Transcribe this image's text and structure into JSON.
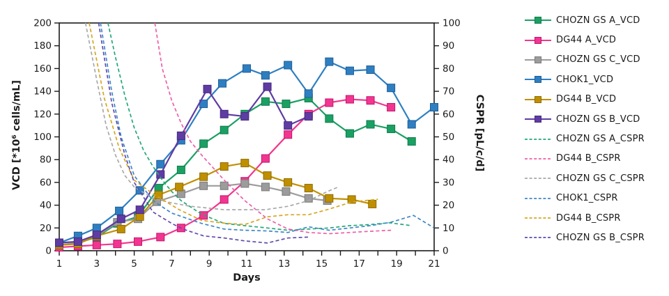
{
  "chart_data": {
    "type": "line",
    "title": "",
    "background": "#ffffff",
    "frame_color": "#1a1a1a",
    "grid": false,
    "legend_position": "right",
    "x_axis": {
      "label": "Days",
      "min": 1,
      "max": 21,
      "minor_tick_step": 1,
      "tick_labels": [
        "1",
        "3",
        "5",
        "7",
        "9",
        "11",
        "13",
        "15",
        "17",
        "19",
        "21"
      ],
      "tick_values": [
        1,
        3,
        5,
        7,
        9,
        11,
        13,
        15,
        17,
        19,
        21
      ]
    },
    "y_left": {
      "label": "VCD [*10⁶ cells/mL]",
      "min": 0,
      "max": 200,
      "step": 20,
      "tick_labels": [
        "0",
        "20",
        "40",
        "60",
        "80",
        "100",
        "120",
        "140",
        "160",
        "180",
        "200"
      ]
    },
    "y_right": {
      "label": "CSPR [pL/c/d]",
      "min": 0,
      "max": 100,
      "step": 10,
      "tick_labels": [
        "0",
        "10",
        "20",
        "30",
        "40",
        "50",
        "60",
        "70",
        "80",
        "90",
        "100"
      ]
    },
    "series": [
      {
        "label": "CHOZN GS A_VCD",
        "color": "#1BA064",
        "border": "#0F7A49",
        "style": "solid",
        "axis": "left",
        "x": [
          1,
          2,
          3,
          4.1,
          5.2,
          6.3,
          7.5,
          8.7,
          9.8,
          10.9,
          12,
          13.1,
          14.3,
          15.4,
          16.5,
          17.6,
          18.7,
          19.8
        ],
        "y": [
          5,
          7,
          12,
          24,
          30,
          55,
          71,
          94,
          106,
          120,
          131,
          129,
          134,
          116,
          103,
          111,
          107,
          96
        ]
      },
      {
        "label": "DG44 A_VCD",
        "color": "#F2368F",
        "border": "#C21371",
        "style": "solid",
        "axis": "left",
        "x": [
          1,
          2,
          3,
          4.1,
          5.2,
          6.4,
          7.5,
          8.7,
          9.8,
          10.9,
          12,
          13.2,
          14.3,
          15.4,
          16.5,
          17.6,
          18.7
        ],
        "y": [
          3,
          4,
          5,
          6,
          8,
          12,
          20,
          31,
          45,
          61,
          81,
          102,
          120,
          130,
          133,
          132,
          126
        ]
      },
      {
        "label": "CHOZN GS C_VCD",
        "color": "#9C9C9C",
        "border": "#7A7A7A",
        "style": "solid",
        "axis": "left",
        "x": [
          1,
          2,
          3,
          4.1,
          5.2,
          6.2,
          7.5,
          8.7,
          9.8,
          10.9,
          12,
          13.1,
          14.3,
          15.3
        ],
        "y": [
          5,
          7,
          13,
          25,
          28,
          43,
          50,
          57,
          57,
          59,
          56,
          52,
          46,
          44
        ]
      },
      {
        "label": "CHOK1_VCD",
        "color": "#2E7FC2",
        "border": "#1E5D96",
        "style": "solid",
        "axis": "left",
        "x": [
          1,
          2,
          3,
          4.2,
          5.3,
          6.4,
          7.5,
          8.7,
          9.7,
          11,
          12,
          13.2,
          14.3,
          15.4,
          16.5,
          17.6,
          18.7,
          19.8,
          21
        ],
        "y": [
          7,
          13,
          20,
          35,
          53,
          76,
          97,
          129,
          147,
          160,
          154,
          163,
          138,
          166,
          158,
          159,
          143,
          111,
          126
        ]
      },
      {
        "label": "DG44 B_VCD",
        "color": "#BF8F00",
        "border": "#8F6B00",
        "style": "solid",
        "axis": "left",
        "x": [
          1,
          2,
          3,
          4.3,
          5.3,
          6.3,
          7.4,
          8.7,
          9.8,
          10.9,
          12.1,
          13.2,
          14.3,
          15.4,
          16.6,
          17.7
        ],
        "y": [
          5,
          6,
          13,
          19,
          30,
          49,
          56,
          65,
          74,
          77,
          66,
          60,
          55,
          46,
          45,
          41
        ]
      },
      {
        "label": "CHOZN GS B_VCD",
        "color": "#5F3CA3",
        "border": "#46297E",
        "style": "solid",
        "axis": "left",
        "x": [
          1,
          2,
          3,
          4.3,
          5.3,
          6.4,
          7.5,
          8.9,
          9.8,
          10.9,
          12.1,
          13.2,
          14.3
        ],
        "y": [
          7,
          8,
          14,
          28,
          36,
          67,
          101,
          142,
          120,
          118,
          144,
          110,
          118
        ]
      },
      {
        "label": "CHOZN GS A_CSPR",
        "color": "#22A876",
        "style": "dashed",
        "axis": "right",
        "x": [
          3.6,
          4,
          4.5,
          5,
          5.5,
          6,
          6.5,
          7,
          7.5,
          8.6,
          9.8,
          10.9,
          12.1,
          13.2,
          14.3,
          15.4,
          16.5,
          17.6,
          18.6,
          19.8
        ],
        "y": [
          100,
          85,
          68,
          54,
          44,
          37,
          31,
          26,
          22,
          16,
          12,
          11,
          10,
          9,
          9.5,
          10,
          11,
          11.5,
          12.3,
          11
        ]
      },
      {
        "label": "DG44 B_CSPR",
        "color": "#EE5FA8",
        "style": "dashed",
        "axis": "right",
        "x": [
          6.1,
          6.5,
          7,
          7.5,
          8,
          8.6,
          9.8,
          10.9,
          12.1,
          13.2,
          14.3,
          15.4,
          16.5,
          17.5,
          18.7
        ],
        "y": [
          100,
          80,
          66,
          56,
          48,
          42,
          31,
          22,
          14,
          9.5,
          8,
          7.5,
          8,
          8.5,
          9
        ]
      },
      {
        "label": "CHOZN GS C_CSPR",
        "color": "#A8A8A8",
        "style": "dashed",
        "axis": "right",
        "x": [
          2.4,
          3,
          3.5,
          4,
          4.5,
          5,
          6,
          7,
          8,
          9.8,
          10.9,
          12,
          13.2,
          14.3,
          15.3,
          15.9
        ],
        "y": [
          100,
          75,
          55,
          42,
          33,
          28,
          23,
          21,
          19.5,
          18,
          18,
          18,
          19.5,
          22,
          26,
          28
        ]
      },
      {
        "label": "CHOK1_CSPR",
        "color": "#3E87C9",
        "style": "dashed",
        "axis": "right",
        "x": [
          3.2,
          3.8,
          4.3,
          5,
          6,
          7,
          8.6,
          9.8,
          10.9,
          12.1,
          13.2,
          14.3,
          15.4,
          16.5,
          17.6,
          18.7,
          19.9,
          21
        ],
        "y": [
          100,
          70,
          50,
          33,
          22,
          16.5,
          12,
          9.5,
          9,
          8.7,
          8,
          10.5,
          9,
          10,
          11,
          12.5,
          15.5,
          10
        ]
      },
      {
        "label": "DG44 B_CSPR",
        "color": "#D6A521",
        "style": "dashed",
        "axis": "right",
        "x": [
          2.6,
          3.4,
          4.2,
          5,
          6,
          7.4,
          8.6,
          9.8,
          10.9,
          12.1,
          13.2,
          14.3,
          15.4,
          16.6,
          18
        ],
        "y": [
          100,
          67,
          45,
          31,
          25,
          18,
          13.3,
          12.1,
          11.5,
          14.9,
          15.8,
          15.8,
          18.3,
          21.4,
          22.6
        ]
      },
      {
        "label": "CHOZN GS B_CSPR",
        "color": "#5F4BAD",
        "style": "dashed",
        "axis": "right",
        "x": [
          3.1,
          3.8,
          4.5,
          5,
          6,
          7,
          7.6,
          8.7,
          9.8,
          10.9,
          12.1,
          13.2,
          14.3
        ],
        "y": [
          100,
          65,
          42,
          30,
          17,
          12,
          9.5,
          6.5,
          5.6,
          4.3,
          3.4,
          5.6,
          6
        ]
      }
    ]
  }
}
